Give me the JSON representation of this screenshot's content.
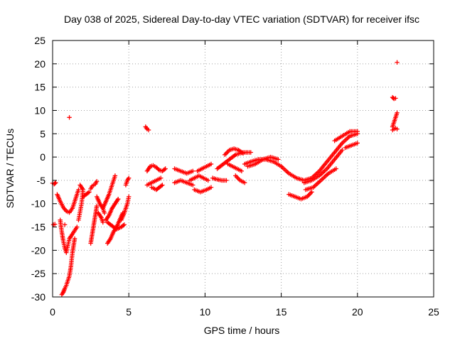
{
  "chart_data": {
    "type": "scatter",
    "title": "Day 038 of 2025, Sidereal Day-to-day VTEC variation (SDTVAR) for receiver ifsc",
    "xlabel": "GPS time / hours",
    "ylabel": "SDTVAR / TECUs",
    "xlim": [
      0,
      25
    ],
    "ylim": [
      -30,
      25
    ],
    "xticks": [
      "0",
      "5",
      "10",
      "15",
      "20",
      "25"
    ],
    "yticks": [
      "-30",
      "-25",
      "-20",
      "-15",
      "-10",
      "-5",
      "0",
      "5",
      "10",
      "15",
      "20",
      "25"
    ],
    "grid": true,
    "marker": "plus",
    "color": "#ff0000",
    "segments": [
      {
        "x": [
          0.0,
          0.1,
          0.2
        ],
        "y": [
          -5.6,
          -5.8,
          -5.5
        ]
      },
      {
        "x": [
          0.05,
          0.15
        ],
        "y": [
          -14.5,
          -14.4
        ]
      },
      {
        "x": [
          0.3,
          0.5,
          0.7,
          0.9,
          1.1,
          1.3,
          1.5,
          1.7
        ],
        "y": [
          -8.0,
          -9.5,
          -10.8,
          -11.6,
          -11.9,
          -11.0,
          -9.0,
          -7.0
        ]
      },
      {
        "x": [
          0.5,
          0.6,
          0.7,
          0.8,
          0.9,
          1.0,
          1.1,
          1.3,
          1.6
        ],
        "y": [
          -13.5,
          -16.0,
          -18.0,
          -19.5,
          -20.5,
          -19.0,
          -17.5,
          -16.5,
          -15.0
        ]
      },
      {
        "x": [
          1.7,
          1.9,
          2.0,
          1.8
        ],
        "y": [
          -13.5,
          -10.0,
          -7.0,
          -6.0
        ]
      },
      {
        "x": [
          0.6,
          0.7,
          0.8,
          0.9,
          1.0,
          1.1,
          1.15,
          1.2,
          1.25,
          1.3,
          1.35,
          1.4,
          1.45
        ],
        "y": [
          -29.5,
          -29.0,
          -28.2,
          -27.5,
          -26.5,
          -25.5,
          -24.5,
          -23.5,
          -22.0,
          -20.5,
          -19.5,
          -18.5,
          -17.5
        ]
      },
      {
        "x": [
          1.1
        ],
        "y": [
          8.5
        ]
      },
      {
        "x": [
          0.8
        ],
        "y": [
          -14.5
        ]
      },
      {
        "x": [
          2.0,
          2.2,
          2.4
        ],
        "y": [
          -8.5,
          -8.0,
          -7.5
        ]
      },
      {
        "x": [
          2.5,
          2.6,
          2.7,
          2.8,
          2.9
        ],
        "y": [
          -18.5,
          -16.5,
          -14.5,
          -12.5,
          -10.5
        ]
      },
      {
        "x": [
          2.5,
          2.6,
          2.8,
          2.9
        ],
        "y": [
          -6.8,
          -6.2,
          -5.8,
          -5.2
        ]
      },
      {
        "x": [
          2.9,
          3.1,
          3.3,
          3.4
        ],
        "y": [
          -8.5,
          -10.0,
          -11.0,
          -12.0
        ]
      },
      {
        "x": [
          3.0,
          3.2,
          3.3
        ],
        "y": [
          -12.0,
          -13.0,
          -14.0
        ]
      },
      {
        "x": [
          3.3,
          3.5,
          3.7,
          3.9,
          4.1
        ],
        "y": [
          -11.0,
          -9.5,
          -8.0,
          -6.0,
          -4.0
        ]
      },
      {
        "x": [
          3.5,
          3.7,
          3.9,
          4.1,
          4.3
        ],
        "y": [
          -13.5,
          -12.5,
          -11.0,
          -10.0,
          -9.0
        ]
      },
      {
        "x": [
          3.6,
          3.8,
          4.0,
          4.2,
          4.4,
          4.6
        ],
        "y": [
          -18.5,
          -17.5,
          -16.0,
          -15.0,
          -13.5,
          -12.0
        ]
      },
      {
        "x": [
          3.6,
          3.8,
          4.0,
          4.2,
          4.5,
          4.7
        ],
        "y": [
          -14.0,
          -14.5,
          -15.0,
          -15.5,
          -15.0,
          -14.5
        ]
      },
      {
        "x": [
          4.5,
          4.7,
          4.9,
          5.0
        ],
        "y": [
          -13.5,
          -12.0,
          -10.0,
          -8.5
        ]
      },
      {
        "x": [
          4.8,
          4.9,
          5.0
        ],
        "y": [
          -6.0,
          -5.0,
          -4.5
        ]
      },
      {
        "x": [
          6.1,
          6.2,
          6.3
        ],
        "y": [
          6.5,
          6.0,
          5.8
        ]
      },
      {
        "x": [
          6.2,
          6.5,
          6.8,
          7.1
        ],
        "y": [
          -6.0,
          -5.5,
          -5.0,
          -4.5
        ]
      },
      {
        "x": [
          6.2,
          6.4,
          6.6,
          6.8,
          7.0,
          7.2,
          7.4
        ],
        "y": [
          -3.0,
          -2.0,
          -1.8,
          -2.2,
          -2.8,
          -3.0,
          -2.5
        ]
      },
      {
        "x": [
          6.5,
          6.8,
          7.0,
          7.2
        ],
        "y": [
          -6.5,
          -7.0,
          -6.5,
          -6.0
        ]
      },
      {
        "x": [
          8.0,
          8.4,
          8.8,
          9.2
        ],
        "y": [
          -2.5,
          -3.0,
          -3.5,
          -3.0
        ]
      },
      {
        "x": [
          8.0,
          8.4,
          8.8,
          9.2
        ],
        "y": [
          -5.5,
          -5.0,
          -5.5,
          -6.0
        ]
      },
      {
        "x": [
          9.0,
          9.3,
          9.6,
          9.9,
          10.2
        ],
        "y": [
          -5.0,
          -4.5,
          -4.0,
          -4.5,
          -5.0
        ]
      },
      {
        "x": [
          9.5,
          9.8,
          10.1,
          10.4
        ],
        "y": [
          -3.0,
          -2.5,
          -2.0,
          -1.5
        ]
      },
      {
        "x": [
          9.3,
          9.7,
          10.1,
          10.4
        ],
        "y": [
          -7.0,
          -7.5,
          -7.0,
          -6.5
        ]
      },
      {
        "x": [
          10.5,
          10.8,
          11.1,
          11.4
        ],
        "y": [
          -4.5,
          -4.8,
          -5.0,
          -5.0
        ]
      },
      {
        "x": [
          10.8,
          11.2,
          11.6,
          12.0,
          12.5,
          13.0
        ],
        "y": [
          -2.5,
          -1.5,
          -0.5,
          0.5,
          1.0,
          1.0
        ]
      },
      {
        "x": [
          11.3,
          11.6,
          11.9,
          12.2,
          12.5
        ],
        "y": [
          0.5,
          1.5,
          1.8,
          1.5,
          0.8
        ]
      },
      {
        "x": [
          11.5,
          11.8,
          12.1,
          12.4
        ],
        "y": [
          -1.5,
          -2.0,
          -2.5,
          -3.0
        ]
      },
      {
        "x": [
          12.0,
          12.3,
          12.6
        ],
        "y": [
          -4.0,
          -5.0,
          -5.5
        ]
      },
      {
        "x": [
          12.6,
          13.0,
          13.5,
          14.0,
          14.5,
          15.0
        ],
        "y": [
          -1.5,
          -1.0,
          -0.5,
          -0.5,
          -1.0,
          -2.0
        ]
      },
      {
        "x": [
          12.8,
          13.3,
          13.8,
          14.3,
          14.8
        ],
        "y": [
          -2.0,
          -1.5,
          -0.5,
          0.0,
          -0.5
        ]
      },
      {
        "x": [
          15.0,
          15.5,
          16.0,
          16.5,
          17.0,
          17.5,
          18.0,
          18.5,
          19.0,
          19.5,
          20.0
        ],
        "y": [
          -2.0,
          -3.5,
          -4.5,
          -5.0,
          -4.5,
          -3.0,
          -1.0,
          1.0,
          3.0,
          4.5,
          5.0
        ]
      },
      {
        "x": [
          15.5,
          15.9,
          16.3,
          16.7,
          17.0
        ],
        "y": [
          -8.0,
          -8.5,
          -9.0,
          -8.5,
          -7.5
        ]
      },
      {
        "x": [
          16.5,
          17.0,
          17.5,
          18.0,
          18.5,
          19.0
        ],
        "y": [
          -5.5,
          -5.0,
          -4.0,
          -2.5,
          -0.5,
          1.5
        ]
      },
      {
        "x": [
          16.6,
          17.1,
          17.6,
          18.1,
          18.6
        ],
        "y": [
          -7.0,
          -6.5,
          -5.0,
          -3.5,
          -2.5
        ]
      },
      {
        "x": [
          18.5,
          19.0,
          19.5,
          20.0
        ],
        "y": [
          3.5,
          4.5,
          5.5,
          5.5
        ]
      },
      {
        "x": [
          19.2,
          19.6,
          20.0
        ],
        "y": [
          2.0,
          2.5,
          3.0
        ]
      },
      {
        "x": [
          22.3,
          22.4,
          22.5
        ],
        "y": [
          12.8,
          12.5,
          12.6
        ]
      },
      {
        "x": [
          22.3,
          22.4,
          22.5,
          22.6
        ],
        "y": [
          6.5,
          7.5,
          8.5,
          9.5
        ]
      },
      {
        "x": [
          22.3,
          22.5,
          22.6
        ],
        "y": [
          5.8,
          6.2,
          6.0
        ]
      },
      {
        "x": [
          22.6
        ],
        "y": [
          20.3
        ]
      }
    ]
  }
}
